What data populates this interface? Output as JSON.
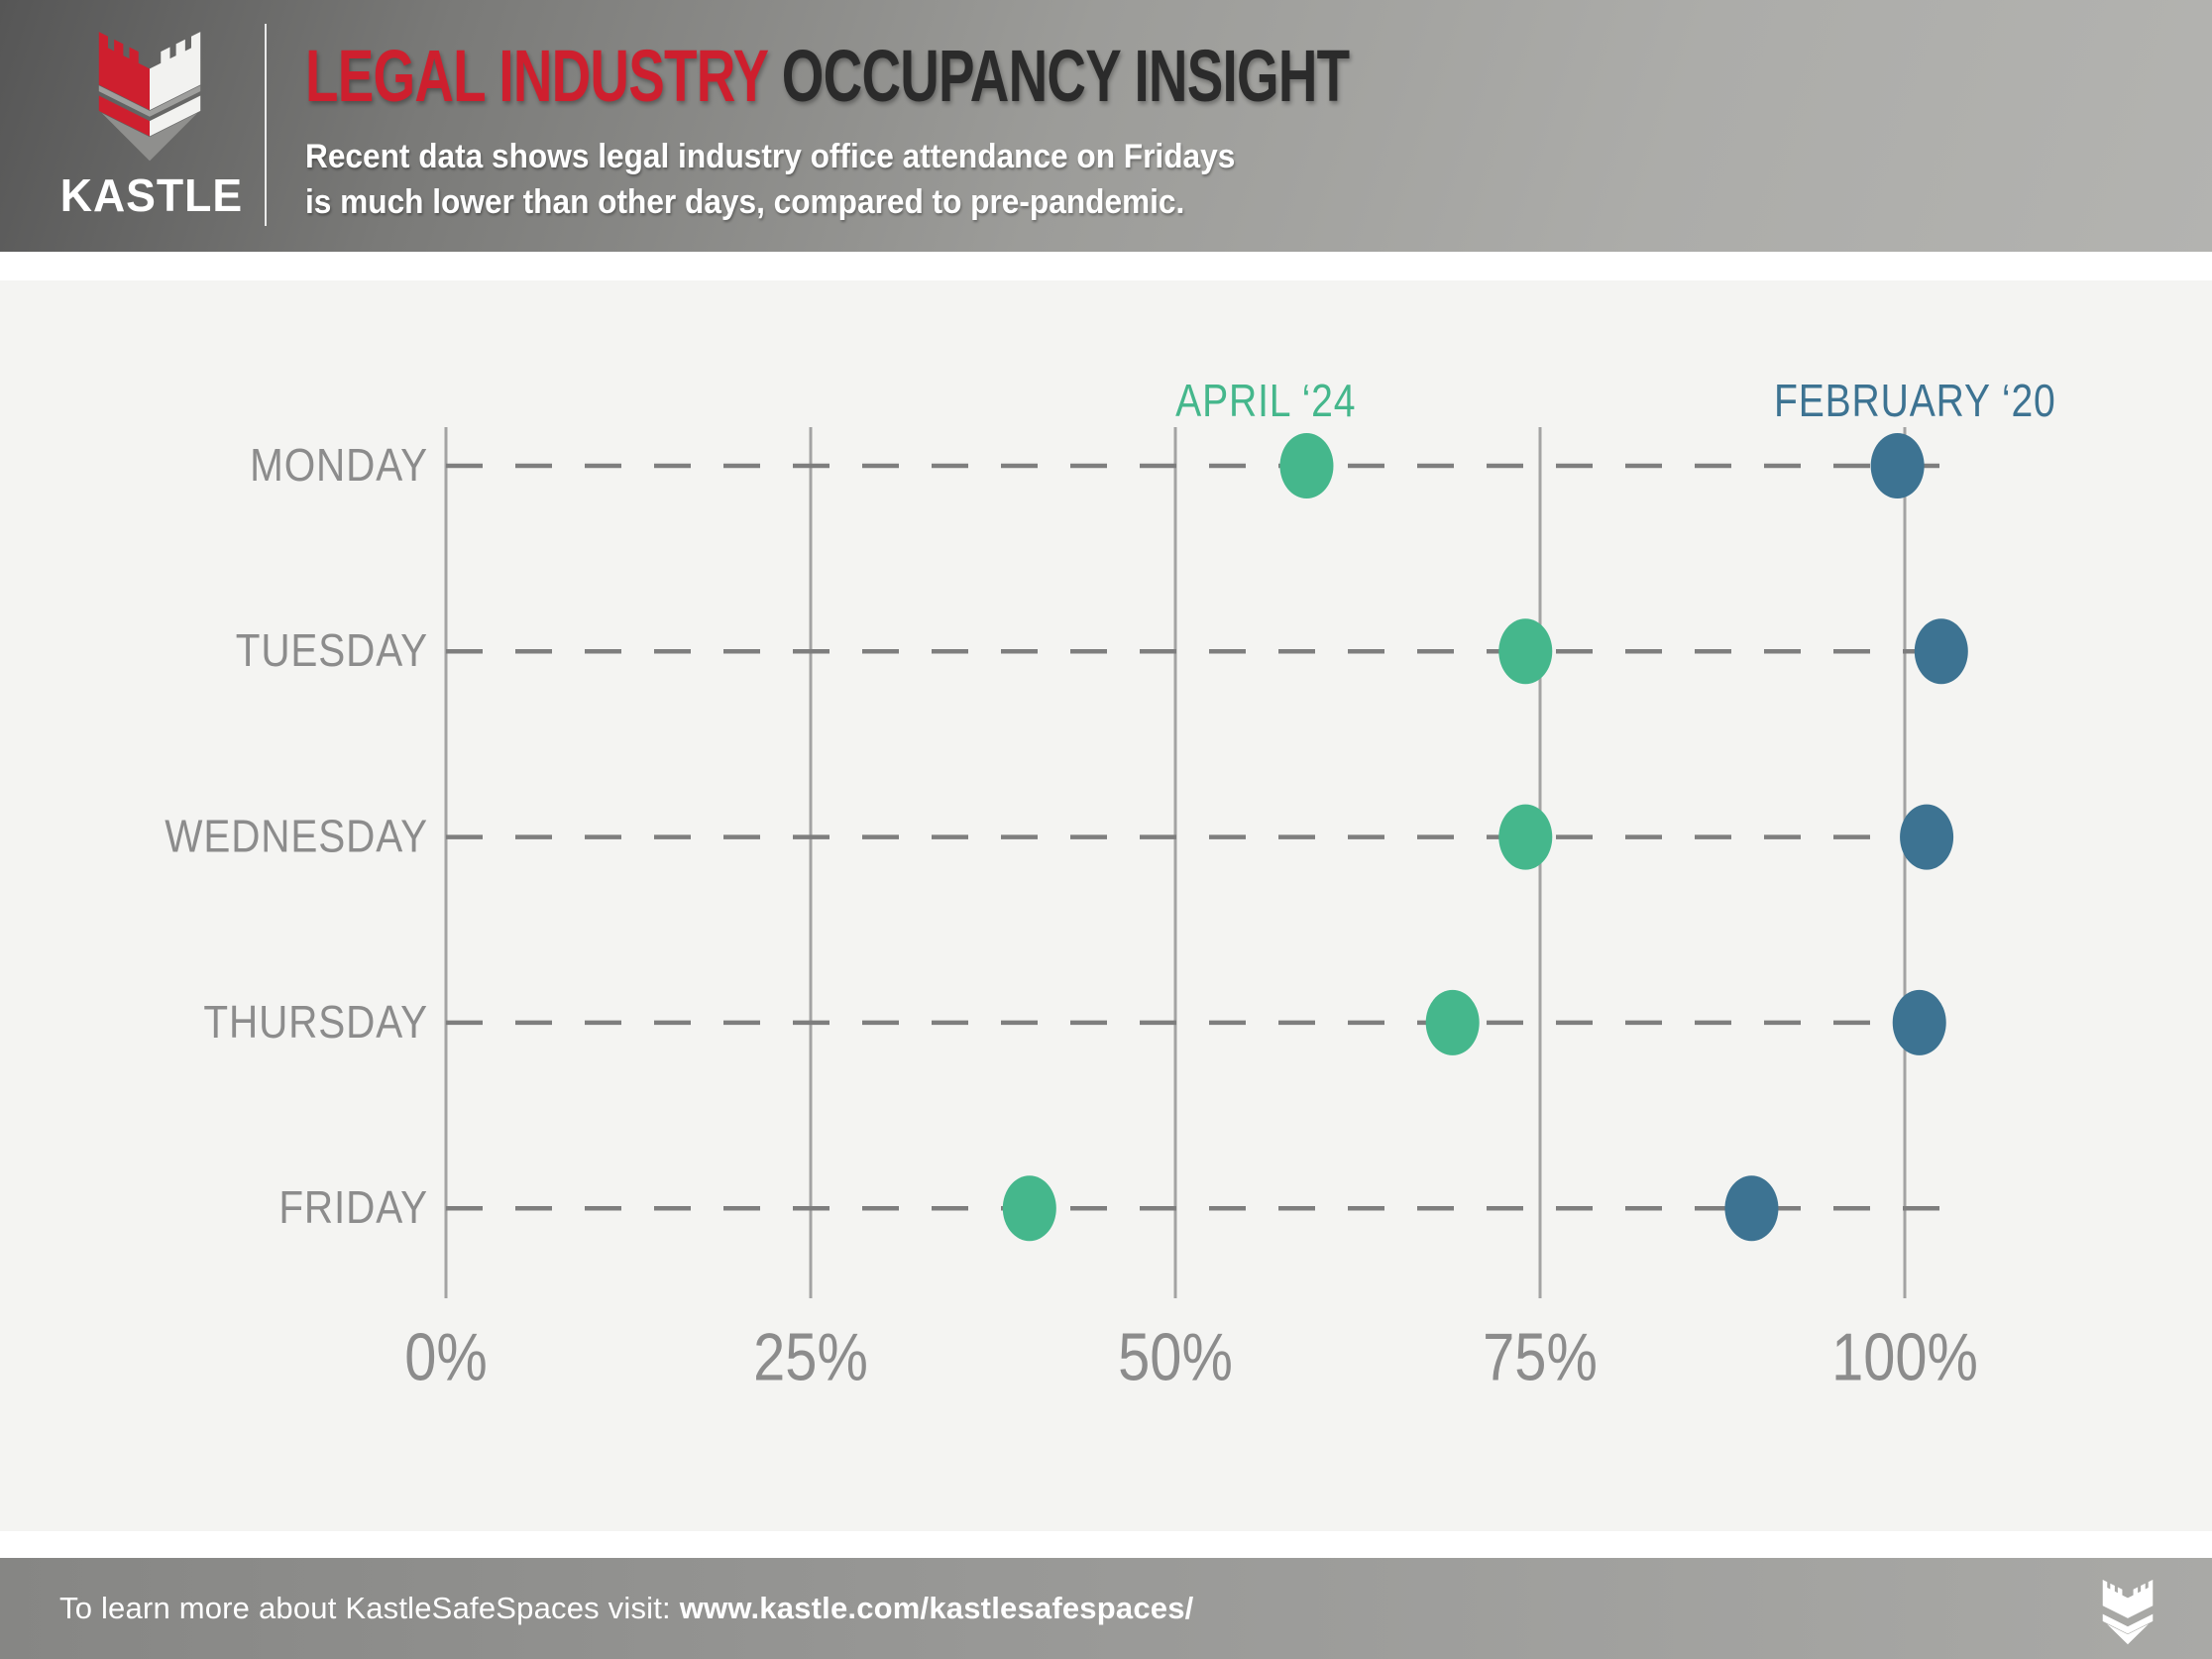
{
  "header": {
    "brand": "KASTLE",
    "title_highlight": "LEGAL INDUSTRY",
    "title_rest": "OCCUPANCY INSIGHT",
    "subtitle_line1": "Recent data shows legal industry office attendance on Fridays",
    "subtitle_line2": "is much lower than other days, compared to pre-pandemic."
  },
  "colors": {
    "brand_red": "#CE1F2E",
    "title_dark": "#2B2B2B",
    "april_green": "#45B78C",
    "february_blue": "#3D7392",
    "axis_text_gray": "#8C8C8C",
    "grid_gray": "#A3A3A3",
    "dash_gray": "#7E7E7E",
    "main_bg": "#F4F4F2"
  },
  "chart_data": {
    "type": "scatter",
    "subtype": "horizontal-dot-plot",
    "title": "Legal industry office occupancy by weekday",
    "categories": [
      "MONDAY",
      "TUESDAY",
      "WEDNESDAY",
      "THURSDAY",
      "FRIDAY"
    ],
    "series": [
      {
        "name": "APRIL ‘24",
        "color": "#45B78C",
        "values": [
          59,
          74,
          74,
          69,
          40
        ],
        "legend_x_pct": 56.2
      },
      {
        "name": "FEBRUARY ‘20",
        "color": "#3D7392",
        "values": [
          99.5,
          102.5,
          101.5,
          101,
          89.5
        ],
        "legend_x_pct": 100.7
      }
    ],
    "x_ticks": {
      "values": [
        0,
        25,
        50,
        75,
        100
      ],
      "labels": [
        "0%",
        "25%",
        "50%",
        "75%",
        "100%"
      ]
    },
    "xlim": [
      0,
      104.5
    ],
    "xlabel": "",
    "ylabel": "",
    "unit": "percent of pre-pandemic occupancy",
    "grid": {
      "vertical_gridlines": "solid",
      "category_rows": "dashed"
    },
    "legend_position": "top"
  },
  "footer": {
    "text": "To learn more about KastleSafeSpaces visit: ",
    "link": "www.kastle.com/kastlesafespaces/"
  }
}
